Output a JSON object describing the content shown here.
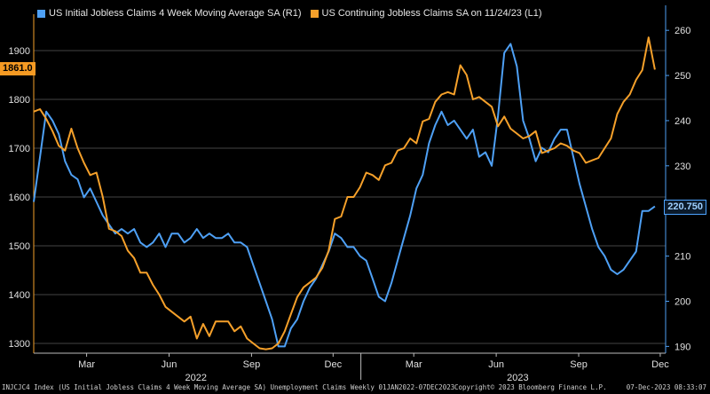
{
  "legend": {
    "series1": "US Initial Jobless Claims 4 Week Moving Average SA  (R1)",
    "series2": "US Continuing Jobless Claims SA  on 11/24/23  (L1)"
  },
  "last_values": {
    "left": "1861.0",
    "right": "220.750"
  },
  "footer": {
    "description": "INJCJC4 Index (US Initial Jobless Claims 4 Week Moving Average SA) Unemployment Claims  Weekly 01JAN2022-07DEC2023",
    "copyright": "Copyright© 2023 Bloomberg Finance L.P.",
    "timestamp": "07-Dec-2023 08:33:07"
  },
  "colors": {
    "initial": "#4ea0f5",
    "continuing": "#f5a02a",
    "background": "#000000",
    "grid": "#5a5a5a"
  },
  "chart_data": {
    "type": "line",
    "x_axis": {
      "month_ticks": [
        {
          "label": "Mar",
          "date": "2022-03-01"
        },
        {
          "label": "Jun",
          "date": "2022-06-01"
        },
        {
          "label": "Sep",
          "date": "2022-09-01"
        },
        {
          "label": "Dec",
          "date": "2022-12-01"
        },
        {
          "label": "Mar",
          "date": "2023-03-01"
        },
        {
          "label": "Jun",
          "date": "2023-06-01"
        },
        {
          "label": "Sep",
          "date": "2023-09-01"
        },
        {
          "label": "Dec",
          "date": "2023-12-01"
        }
      ],
      "year_labels": [
        {
          "label": "2022",
          "date": "2022-07-01"
        },
        {
          "label": "2023",
          "date": "2023-06-25"
        }
      ],
      "year_separator": "2023-01-01",
      "range": [
        "2022-01-01",
        "2023-12-07"
      ]
    },
    "left_axis": {
      "ticks": [
        1300,
        1400,
        1500,
        1600,
        1700,
        1800,
        1900
      ],
      "range": [
        1280,
        1960
      ]
    },
    "right_axis": {
      "ticks": [
        190,
        200,
        210,
        220,
        230,
        240,
        250,
        260
      ],
      "range": [
        188.5,
        262
      ]
    },
    "grid": true,
    "series": [
      {
        "name": "US Initial Jobless Claims 4 Week Moving Average SA  (R1)",
        "axis": "right",
        "points": [
          [
            "2022-01-01",
            222
          ],
          [
            "2022-01-08",
            232
          ],
          [
            "2022-01-15",
            242
          ],
          [
            "2022-01-22",
            240
          ],
          [
            "2022-01-29",
            237
          ],
          [
            "2022-02-05",
            231
          ],
          [
            "2022-02-12",
            228
          ],
          [
            "2022-02-19",
            227
          ],
          [
            "2022-02-26",
            223
          ],
          [
            "2022-03-05",
            225
          ],
          [
            "2022-03-12",
            222
          ],
          [
            "2022-03-19",
            219
          ],
          [
            "2022-03-26",
            217
          ],
          [
            "2022-04-02",
            215
          ],
          [
            "2022-04-09",
            216
          ],
          [
            "2022-04-16",
            215
          ],
          [
            "2022-04-23",
            216
          ],
          [
            "2022-04-30",
            213
          ],
          [
            "2022-05-07",
            212
          ],
          [
            "2022-05-14",
            213
          ],
          [
            "2022-05-21",
            215
          ],
          [
            "2022-05-28",
            212
          ],
          [
            "2022-06-04",
            215
          ],
          [
            "2022-06-11",
            215
          ],
          [
            "2022-06-18",
            213
          ],
          [
            "2022-06-25",
            214
          ],
          [
            "2022-07-02",
            216
          ],
          [
            "2022-07-09",
            214
          ],
          [
            "2022-07-16",
            215
          ],
          [
            "2022-07-23",
            214
          ],
          [
            "2022-07-30",
            214
          ],
          [
            "2022-08-06",
            215
          ],
          [
            "2022-08-13",
            213
          ],
          [
            "2022-08-20",
            213
          ],
          [
            "2022-08-27",
            212
          ],
          [
            "2022-09-03",
            208
          ],
          [
            "2022-09-10",
            204
          ],
          [
            "2022-09-17",
            200
          ],
          [
            "2022-09-24",
            196
          ],
          [
            "2022-10-01",
            190
          ],
          [
            "2022-10-08",
            190
          ],
          [
            "2022-10-15",
            194
          ],
          [
            "2022-10-22",
            196
          ],
          [
            "2022-10-29",
            200
          ],
          [
            "2022-11-05",
            203
          ],
          [
            "2022-11-12",
            205
          ],
          [
            "2022-11-19",
            208
          ],
          [
            "2022-11-26",
            211
          ],
          [
            "2022-12-03",
            215
          ],
          [
            "2022-12-10",
            214
          ],
          [
            "2022-12-17",
            212
          ],
          [
            "2022-12-24",
            212
          ],
          [
            "2022-12-31",
            210
          ],
          [
            "2023-01-07",
            209
          ],
          [
            "2023-01-14",
            205
          ],
          [
            "2023-01-21",
            201
          ],
          [
            "2023-01-28",
            200
          ],
          [
            "2023-02-04",
            204
          ],
          [
            "2023-02-11",
            209
          ],
          [
            "2023-02-18",
            214
          ],
          [
            "2023-02-25",
            219
          ],
          [
            "2023-03-04",
            225
          ],
          [
            "2023-03-11",
            228
          ],
          [
            "2023-03-18",
            235
          ],
          [
            "2023-03-25",
            239
          ],
          [
            "2023-04-01",
            242
          ],
          [
            "2023-04-08",
            239
          ],
          [
            "2023-04-15",
            240
          ],
          [
            "2023-04-22",
            238
          ],
          [
            "2023-04-29",
            236
          ],
          [
            "2023-05-06",
            238
          ],
          [
            "2023-05-13",
            232
          ],
          [
            "2023-05-20",
            233
          ],
          [
            "2023-05-27",
            230
          ],
          [
            "2023-06-03",
            241
          ],
          [
            "2023-06-10",
            255
          ],
          [
            "2023-06-17",
            257
          ],
          [
            "2023-06-24",
            252
          ],
          [
            "2023-07-01",
            240
          ],
          [
            "2023-07-08",
            236
          ],
          [
            "2023-07-15",
            231
          ],
          [
            "2023-07-22",
            234
          ],
          [
            "2023-07-29",
            233
          ],
          [
            "2023-08-05",
            236
          ],
          [
            "2023-08-12",
            238
          ],
          [
            "2023-08-19",
            238
          ],
          [
            "2023-08-26",
            232
          ],
          [
            "2023-09-02",
            226
          ],
          [
            "2023-09-09",
            221
          ],
          [
            "2023-09-16",
            216
          ],
          [
            "2023-09-23",
            212
          ],
          [
            "2023-09-30",
            210
          ],
          [
            "2023-10-07",
            207
          ],
          [
            "2023-10-14",
            206
          ],
          [
            "2023-10-21",
            207
          ],
          [
            "2023-10-28",
            209
          ],
          [
            "2023-11-04",
            211
          ],
          [
            "2023-11-11",
            220
          ],
          [
            "2023-11-18",
            220
          ],
          [
            "2023-11-25",
            221
          ]
        ]
      },
      {
        "name": "US Continuing Jobless Claims SA  on 11/24/23  (L1)",
        "axis": "left",
        "points": [
          [
            "2022-01-01",
            1775
          ],
          [
            "2022-01-08",
            1780
          ],
          [
            "2022-01-15",
            1760
          ],
          [
            "2022-01-22",
            1735
          ],
          [
            "2022-01-29",
            1705
          ],
          [
            "2022-02-05",
            1695
          ],
          [
            "2022-02-12",
            1740
          ],
          [
            "2022-02-19",
            1700
          ],
          [
            "2022-02-26",
            1670
          ],
          [
            "2022-03-05",
            1645
          ],
          [
            "2022-03-12",
            1650
          ],
          [
            "2022-03-19",
            1600
          ],
          [
            "2022-03-26",
            1535
          ],
          [
            "2022-04-02",
            1530
          ],
          [
            "2022-04-09",
            1520
          ],
          [
            "2022-04-16",
            1490
          ],
          [
            "2022-04-23",
            1475
          ],
          [
            "2022-04-30",
            1445
          ],
          [
            "2022-05-07",
            1445
          ],
          [
            "2022-05-14",
            1420
          ],
          [
            "2022-05-21",
            1400
          ],
          [
            "2022-05-28",
            1375
          ],
          [
            "2022-06-04",
            1365
          ],
          [
            "2022-06-11",
            1355
          ],
          [
            "2022-06-18",
            1345
          ],
          [
            "2022-06-25",
            1355
          ],
          [
            "2022-07-02",
            1310
          ],
          [
            "2022-07-09",
            1340
          ],
          [
            "2022-07-16",
            1315
          ],
          [
            "2022-07-23",
            1345
          ],
          [
            "2022-07-30",
            1345
          ],
          [
            "2022-08-06",
            1345
          ],
          [
            "2022-08-13",
            1325
          ],
          [
            "2022-08-20",
            1335
          ],
          [
            "2022-08-27",
            1310
          ],
          [
            "2022-09-03",
            1300
          ],
          [
            "2022-09-10",
            1290
          ],
          [
            "2022-09-17",
            1288
          ],
          [
            "2022-09-24",
            1290
          ],
          [
            "2022-10-01",
            1300
          ],
          [
            "2022-10-08",
            1325
          ],
          [
            "2022-10-15",
            1360
          ],
          [
            "2022-10-22",
            1395
          ],
          [
            "2022-10-29",
            1415
          ],
          [
            "2022-11-05",
            1425
          ],
          [
            "2022-11-12",
            1435
          ],
          [
            "2022-11-19",
            1455
          ],
          [
            "2022-11-26",
            1490
          ],
          [
            "2022-12-03",
            1555
          ],
          [
            "2022-12-10",
            1560
          ],
          [
            "2022-12-17",
            1600
          ],
          [
            "2022-12-24",
            1600
          ],
          [
            "2022-12-31",
            1620
          ],
          [
            "2023-01-07",
            1650
          ],
          [
            "2023-01-14",
            1645
          ],
          [
            "2023-01-21",
            1635
          ],
          [
            "2023-01-28",
            1665
          ],
          [
            "2023-02-04",
            1670
          ],
          [
            "2023-02-11",
            1695
          ],
          [
            "2023-02-18",
            1700
          ],
          [
            "2023-02-25",
            1720
          ],
          [
            "2023-03-04",
            1710
          ],
          [
            "2023-03-11",
            1755
          ],
          [
            "2023-03-18",
            1760
          ],
          [
            "2023-03-25",
            1795
          ],
          [
            "2023-04-01",
            1810
          ],
          [
            "2023-04-08",
            1815
          ],
          [
            "2023-04-15",
            1810
          ],
          [
            "2023-04-22",
            1870
          ],
          [
            "2023-04-29",
            1850
          ],
          [
            "2023-05-06",
            1800
          ],
          [
            "2023-05-13",
            1805
          ],
          [
            "2023-05-20",
            1795
          ],
          [
            "2023-05-27",
            1785
          ],
          [
            "2023-06-03",
            1745
          ],
          [
            "2023-06-10",
            1765
          ],
          [
            "2023-06-17",
            1740
          ],
          [
            "2023-06-24",
            1730
          ],
          [
            "2023-07-01",
            1720
          ],
          [
            "2023-07-08",
            1725
          ],
          [
            "2023-07-15",
            1735
          ],
          [
            "2023-07-22",
            1690
          ],
          [
            "2023-07-29",
            1695
          ],
          [
            "2023-08-05",
            1700
          ],
          [
            "2023-08-12",
            1710
          ],
          [
            "2023-08-19",
            1705
          ],
          [
            "2023-08-26",
            1695
          ],
          [
            "2023-09-02",
            1690
          ],
          [
            "2023-09-09",
            1670
          ],
          [
            "2023-09-16",
            1675
          ],
          [
            "2023-09-23",
            1680
          ],
          [
            "2023-09-30",
            1700
          ],
          [
            "2023-10-07",
            1720
          ],
          [
            "2023-10-14",
            1770
          ],
          [
            "2023-10-21",
            1795
          ],
          [
            "2023-10-28",
            1810
          ],
          [
            "2023-11-04",
            1840
          ],
          [
            "2023-11-11",
            1860
          ],
          [
            "2023-11-18",
            1927
          ],
          [
            "2023-11-25",
            1861
          ]
        ]
      }
    ]
  }
}
